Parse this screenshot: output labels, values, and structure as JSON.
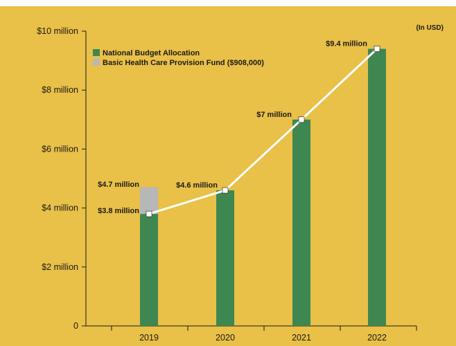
{
  "chart_data": {
    "type": "bar",
    "categories": [
      "2019",
      "2020",
      "2021",
      "2022"
    ],
    "series": [
      {
        "name": "National Budget Allocation",
        "values": [
          3.8,
          4.6,
          7.0,
          9.4
        ],
        "color": "#3f8751"
      },
      {
        "name": "Basic Health Care Provision Fund ($908,000)",
        "values": [
          0.908,
          0,
          0,
          0
        ],
        "color": "#b7b7b7"
      }
    ],
    "line": {
      "values": [
        3.8,
        4.6,
        7.0,
        9.4
      ],
      "color": "#ffffff"
    },
    "unit_note": "(In USD)",
    "ylim": [
      0,
      10
    ],
    "yticks": [
      {
        "value": 0,
        "label": "0"
      },
      {
        "value": 2,
        "label": "$2 million"
      },
      {
        "value": 4,
        "label": "$4 million"
      },
      {
        "value": 6,
        "label": "$6 million"
      },
      {
        "value": 8,
        "label": "$8 million"
      },
      {
        "value": 10,
        "label": "$10 million"
      }
    ],
    "data_labels": [
      {
        "text": "$4.7 million",
        "value": 4.7,
        "category": "2019"
      },
      {
        "text": "$3.8 million",
        "value": 3.8,
        "category": "2019"
      },
      {
        "text": "$4.6 million",
        "value": 4.6,
        "category": "2020"
      },
      {
        "text": "$7 million",
        "value": 7.0,
        "category": "2021"
      },
      {
        "text": "$9.4 million",
        "value": 9.4,
        "category": "2022"
      }
    ],
    "legend": "top-left",
    "grid": false,
    "background": "#e9c048"
  }
}
